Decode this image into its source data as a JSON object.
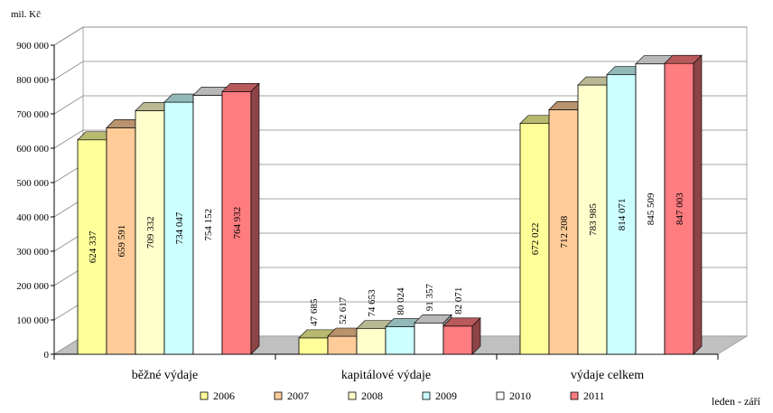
{
  "chart_data": {
    "type": "bar",
    "ylabel": "mil. Kč",
    "period_note": "leden - září",
    "ylim": [
      0,
      900000
    ],
    "y_ticks": [
      0,
      100000,
      200000,
      300000,
      400000,
      500000,
      600000,
      700000,
      800000,
      900000
    ],
    "y_tick_labels": [
      "0",
      "100 000",
      "200 000",
      "300 000",
      "400 000",
      "500 000",
      "600 000",
      "700 000",
      "800 000",
      "900 000"
    ],
    "grid": true,
    "legend_position": "bottom",
    "categories": [
      "běžné výdaje",
      "kapitálové výdaje",
      "výdaje celkem"
    ],
    "series": [
      {
        "name": "2006",
        "color": "#FFFF99",
        "values": [
          624337,
          47685,
          672022
        ],
        "labels": [
          "624 337",
          "47 685",
          "672 022"
        ]
      },
      {
        "name": "2007",
        "color": "#FFCC99",
        "values": [
          659591,
          52617,
          712208
        ],
        "labels": [
          "659 591",
          "52 617",
          "712 208"
        ]
      },
      {
        "name": "2008",
        "color": "#FFFFCC",
        "values": [
          709332,
          74653,
          783985
        ],
        "labels": [
          "709 332",
          "74 653",
          "783 985"
        ]
      },
      {
        "name": "2009",
        "color": "#CCFFFF",
        "values": [
          734047,
          80024,
          814071
        ],
        "labels": [
          "734 047",
          "80 024",
          "814 071"
        ]
      },
      {
        "name": "2010",
        "color": "#FFFFFF",
        "values": [
          754152,
          91357,
          845509
        ],
        "labels": [
          "754 152",
          "91 357",
          "845 509"
        ]
      },
      {
        "name": "2011",
        "color": "#FF7C80",
        "values": [
          764932,
          82071,
          847003
        ],
        "labels": [
          "764 932",
          "82 071",
          "847 003"
        ]
      }
    ]
  }
}
